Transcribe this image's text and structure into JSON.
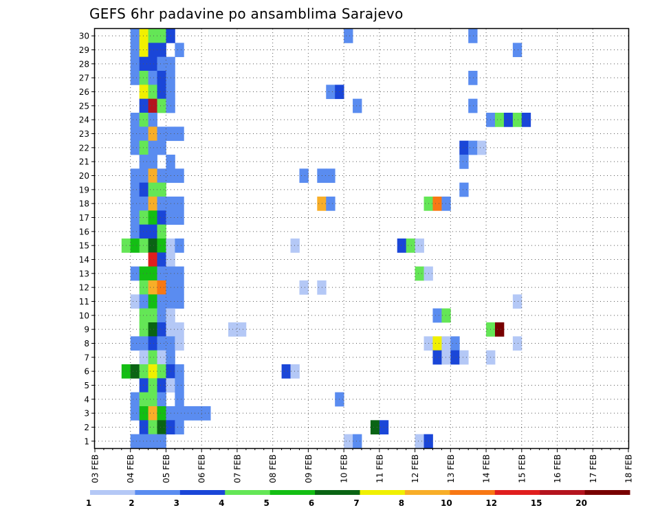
{
  "chart_data": {
    "type": "heatmap",
    "title": "GEFS 6hr padavine po ansamblima Sarajevo",
    "xlabel": "",
    "ylabel": "",
    "x_ticks": [
      "03 FEB",
      "04 FEB",
      "05 FEB",
      "06 FEB",
      "07 FEB",
      "08 FEB",
      "09 FEB",
      "10 FEB",
      "11 FEB",
      "12 FEB",
      "13 FEB",
      "14 FEB",
      "15 FEB",
      "16 FEB",
      "17 FEB",
      "18 FEB"
    ],
    "y_ticks": [
      1,
      2,
      3,
      4,
      5,
      6,
      7,
      8,
      9,
      10,
      11,
      12,
      13,
      14,
      15,
      16,
      17,
      18,
      19,
      20,
      21,
      22,
      23,
      24,
      25,
      26,
      27,
      28,
      29,
      30
    ],
    "xlim_days": [
      0,
      15
    ],
    "ylim": [
      0,
      30
    ],
    "grid": true,
    "time_step_hours": 6,
    "cell_x_unit": "6hr step from 03 FEB 00Z",
    "legend": {
      "position": "bottom",
      "labels": [
        "1",
        "2",
        "3",
        "4",
        "5",
        "6",
        "7",
        "8",
        "10",
        "12",
        "15",
        "20"
      ],
      "colors": [
        "#b4c8f6",
        "#5a8cf0",
        "#1a46d8",
        "#64e656",
        "#14be14",
        "#0a6414",
        "#f0f000",
        "#f8ae28",
        "#f87814",
        "#e01e1e",
        "#b4141e",
        "#780000"
      ]
    },
    "cells": [
      [
        4,
        30,
        1
      ],
      [
        5,
        30,
        6
      ],
      [
        6,
        30,
        3
      ],
      [
        7,
        30,
        3
      ],
      [
        8,
        30,
        2
      ],
      [
        28,
        30,
        1
      ],
      [
        42,
        30,
        1
      ],
      [
        4,
        29,
        1
      ],
      [
        5,
        29,
        6
      ],
      [
        6,
        29,
        2
      ],
      [
        7,
        29,
        2
      ],
      [
        9,
        29,
        1
      ],
      [
        47,
        29,
        1
      ],
      [
        4,
        28,
        1
      ],
      [
        5,
        28,
        2
      ],
      [
        6,
        28,
        2
      ],
      [
        7,
        28,
        1
      ],
      [
        8,
        28,
        1
      ],
      [
        4,
        27,
        1
      ],
      [
        5,
        27,
        3
      ],
      [
        6,
        27,
        1
      ],
      [
        7,
        27,
        2
      ],
      [
        8,
        27,
        1
      ],
      [
        42,
        27,
        1
      ],
      [
        5,
        26,
        6
      ],
      [
        6,
        26,
        3
      ],
      [
        7,
        26,
        2
      ],
      [
        8,
        26,
        1
      ],
      [
        26,
        26,
        1
      ],
      [
        27,
        26,
        2
      ],
      [
        5,
        25,
        2
      ],
      [
        6,
        25,
        10
      ],
      [
        7,
        25,
        3
      ],
      [
        8,
        25,
        1
      ],
      [
        29,
        25,
        1
      ],
      [
        42,
        25,
        1
      ],
      [
        4,
        24,
        1
      ],
      [
        5,
        24,
        3
      ],
      [
        6,
        24,
        1
      ],
      [
        44,
        24,
        1
      ],
      [
        45,
        24,
        3
      ],
      [
        46,
        24,
        2
      ],
      [
        47,
        24,
        3
      ],
      [
        48,
        24,
        2
      ],
      [
        4,
        23,
        1
      ],
      [
        5,
        23,
        1
      ],
      [
        6,
        23,
        7
      ],
      [
        7,
        23,
        1
      ],
      [
        8,
        23,
        1
      ],
      [
        9,
        23,
        1
      ],
      [
        4,
        22,
        1
      ],
      [
        5,
        22,
        3
      ],
      [
        6,
        22,
        1
      ],
      [
        7,
        22,
        1
      ],
      [
        41,
        22,
        2
      ],
      [
        42,
        22,
        1
      ],
      [
        43,
        22,
        0
      ],
      [
        5,
        21,
        1
      ],
      [
        6,
        21,
        1
      ],
      [
        8,
        21,
        1
      ],
      [
        41,
        21,
        1
      ],
      [
        4,
        20,
        1
      ],
      [
        5,
        20,
        1
      ],
      [
        6,
        20,
        7
      ],
      [
        7,
        20,
        1
      ],
      [
        8,
        20,
        1
      ],
      [
        9,
        20,
        1
      ],
      [
        23,
        20,
        1
      ],
      [
        25,
        20,
        1
      ],
      [
        26,
        20,
        1
      ],
      [
        4,
        19,
        1
      ],
      [
        5,
        19,
        2
      ],
      [
        6,
        19,
        3
      ],
      [
        7,
        19,
        3
      ],
      [
        41,
        19,
        1
      ],
      [
        4,
        18,
        1
      ],
      [
        5,
        18,
        1
      ],
      [
        6,
        18,
        7
      ],
      [
        7,
        18,
        1
      ],
      [
        8,
        18,
        1
      ],
      [
        9,
        18,
        1
      ],
      [
        25,
        18,
        7
      ],
      [
        26,
        18,
        1
      ],
      [
        37,
        18,
        3
      ],
      [
        38,
        18,
        8
      ],
      [
        39,
        18,
        1
      ],
      [
        4,
        17,
        1
      ],
      [
        5,
        17,
        3
      ],
      [
        6,
        17,
        4
      ],
      [
        7,
        17,
        2
      ],
      [
        8,
        17,
        1
      ],
      [
        9,
        17,
        1
      ],
      [
        4,
        16,
        1
      ],
      [
        5,
        16,
        2
      ],
      [
        6,
        16,
        2
      ],
      [
        7,
        16,
        3
      ],
      [
        3,
        15,
        3
      ],
      [
        4,
        15,
        4
      ],
      [
        5,
        15,
        3
      ],
      [
        6,
        15,
        5
      ],
      [
        7,
        15,
        4
      ],
      [
        8,
        15,
        0
      ],
      [
        9,
        15,
        1
      ],
      [
        22,
        15,
        0
      ],
      [
        34,
        15,
        2
      ],
      [
        35,
        15,
        3
      ],
      [
        36,
        15,
        0
      ],
      [
        6,
        14,
        9
      ],
      [
        7,
        14,
        2
      ],
      [
        8,
        14,
        0
      ],
      [
        4,
        13,
        1
      ],
      [
        5,
        13,
        4
      ],
      [
        6,
        13,
        4
      ],
      [
        7,
        13,
        1
      ],
      [
        8,
        13,
        1
      ],
      [
        9,
        13,
        1
      ],
      [
        36,
        13,
        3
      ],
      [
        37,
        13,
        0
      ],
      [
        5,
        12,
        3
      ],
      [
        6,
        12,
        7
      ],
      [
        7,
        12,
        8
      ],
      [
        8,
        12,
        1
      ],
      [
        9,
        12,
        1
      ],
      [
        23,
        12,
        0
      ],
      [
        25,
        12,
        0
      ],
      [
        4,
        11,
        0
      ],
      [
        5,
        11,
        1
      ],
      [
        6,
        11,
        4
      ],
      [
        7,
        11,
        1
      ],
      [
        8,
        11,
        1
      ],
      [
        9,
        11,
        1
      ],
      [
        47,
        11,
        0
      ],
      [
        5,
        10,
        3
      ],
      [
        6,
        10,
        3
      ],
      [
        7,
        10,
        1
      ],
      [
        8,
        10,
        0
      ],
      [
        38,
        10,
        1
      ],
      [
        39,
        10,
        3
      ],
      [
        5,
        9,
        3
      ],
      [
        6,
        9,
        5
      ],
      [
        7,
        9,
        2
      ],
      [
        8,
        9,
        0
      ],
      [
        9,
        9,
        0
      ],
      [
        15,
        9,
        0
      ],
      [
        16,
        9,
        0
      ],
      [
        44,
        9,
        3
      ],
      [
        45,
        9,
        11
      ],
      [
        4,
        8,
        1
      ],
      [
        5,
        8,
        1
      ],
      [
        6,
        8,
        2
      ],
      [
        7,
        8,
        1
      ],
      [
        8,
        8,
        1
      ],
      [
        9,
        8,
        0
      ],
      [
        37,
        8,
        0
      ],
      [
        38,
        8,
        6
      ],
      [
        39,
        8,
        0
      ],
      [
        40,
        8,
        1
      ],
      [
        47,
        8,
        0
      ],
      [
        5,
        7,
        0
      ],
      [
        6,
        7,
        3
      ],
      [
        7,
        7,
        0
      ],
      [
        8,
        7,
        1
      ],
      [
        38,
        7,
        2
      ],
      [
        39,
        7,
        0
      ],
      [
        40,
        7,
        2
      ],
      [
        41,
        7,
        0
      ],
      [
        44,
        7,
        0
      ],
      [
        3,
        6,
        4
      ],
      [
        4,
        6,
        5
      ],
      [
        5,
        6,
        3
      ],
      [
        6,
        6,
        6
      ],
      [
        7,
        6,
        3
      ],
      [
        8,
        6,
        2
      ],
      [
        9,
        6,
        1
      ],
      [
        21,
        6,
        2
      ],
      [
        22,
        6,
        0
      ],
      [
        5,
        5,
        2
      ],
      [
        6,
        5,
        3
      ],
      [
        7,
        5,
        2
      ],
      [
        8,
        5,
        0
      ],
      [
        9,
        5,
        1
      ],
      [
        4,
        4,
        1
      ],
      [
        5,
        4,
        3
      ],
      [
        6,
        4,
        3
      ],
      [
        7,
        4,
        1
      ],
      [
        9,
        4,
        1
      ],
      [
        27,
        4,
        1
      ],
      [
        4,
        3,
        1
      ],
      [
        5,
        3,
        4
      ],
      [
        6,
        3,
        7
      ],
      [
        7,
        3,
        4
      ],
      [
        8,
        3,
        1
      ],
      [
        9,
        3,
        1
      ],
      [
        10,
        3,
        1
      ],
      [
        11,
        3,
        1
      ],
      [
        12,
        3,
        1
      ],
      [
        5,
        2,
        2
      ],
      [
        6,
        2,
        3
      ],
      [
        7,
        2,
        5
      ],
      [
        8,
        2,
        2
      ],
      [
        9,
        2,
        1
      ],
      [
        31,
        2,
        5
      ],
      [
        32,
        2,
        2
      ],
      [
        4,
        1,
        1
      ],
      [
        5,
        1,
        1
      ],
      [
        6,
        1,
        1
      ],
      [
        7,
        1,
        1
      ],
      [
        28,
        1,
        0
      ],
      [
        29,
        1,
        1
      ],
      [
        36,
        1,
        0
      ],
      [
        37,
        1,
        2
      ]
    ]
  }
}
